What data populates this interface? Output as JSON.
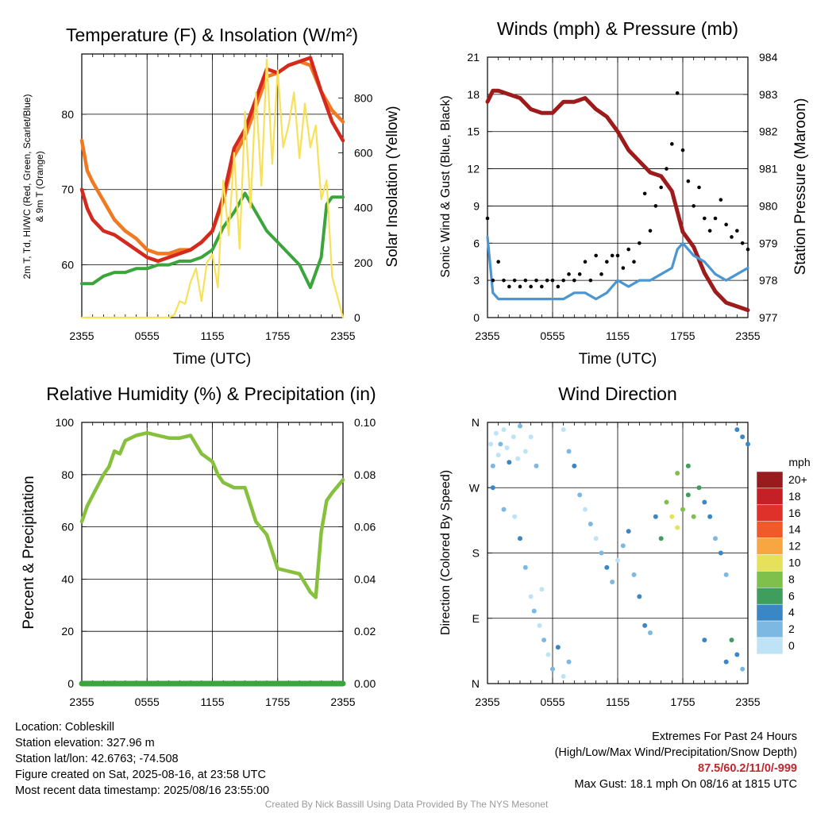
{
  "panels": {
    "temp": {
      "title": "Temperature (F) & Insolation (W/m²)",
      "ylabel_left_line1": "2m T, Td, HI/WC (Red, Green, Scarlet/Blue)",
      "ylabel_left_line2": "& 9m T (Orange)",
      "ylabel_right": "Solar Insolation (Yellow)",
      "xlabel": "Time (UTC)"
    },
    "wind": {
      "title": "Winds (mph) & Pressure (mb)",
      "ylabel_left": "Sonic Wind & Gust (Blue, Black)",
      "ylabel_right": "Station Pressure (Maroon)",
      "xlabel": "Time (UTC)"
    },
    "rh": {
      "title": "Relative Humidity (%) & Precipitation (in)",
      "ylabel_left": "Percent & Precipitation"
    },
    "dir": {
      "title": "Wind Direction",
      "ylabel_left": "Direction (Colored By Speed)",
      "legend_unit": "mph",
      "legend_labels": [
        "20+",
        "18",
        "16",
        "14",
        "12",
        "10",
        "8",
        "6",
        "4",
        "2",
        "0"
      ],
      "legend_colors": [
        "#9a1b1e",
        "#c42026",
        "#e0302a",
        "#f05a28",
        "#f8a642",
        "#e6e05a",
        "#7fc04c",
        "#3f9e5c",
        "#3b86c4",
        "#7db8e3",
        "#bfe3f6"
      ]
    }
  },
  "x_ticks": [
    "2355",
    "0555",
    "1155",
    "1755",
    "2355"
  ],
  "info": {
    "location": "Location: Cobleskill",
    "elevation": "Station elevation: 327.96 m",
    "latlon": "Station lat/lon: 42.6763; -74.508",
    "created": "Figure created on Sat, 2025-08-16, at 23:58 UTC",
    "recent": "Most recent data timestamp: 2025/08/16 23:55:00"
  },
  "extremes": {
    "title": "Extremes For Past 24 Hours",
    "subtitle": "(High/Low/Max Wind/Precipitation/Snow Depth)",
    "values": "87.5/60.2/11/0/-999",
    "max_gust": "Max Gust: 18.1 mph On 08/16 at 1815 UTC"
  },
  "credit": "Created By Nick Bassill Using Data Provided By The NYS Mesonet",
  "colors": {
    "temperature": "#d42a1e",
    "dewpoint": "#3aa53a",
    "temp_9m": "#f07a22",
    "insolation": "#f7e05a",
    "wind": "#4a96d2",
    "gust": "#000000",
    "pressure": "#9e1b1b",
    "rh": "#86c03c",
    "precip": "#3aa53a"
  },
  "chart_data": [
    {
      "type": "line",
      "id": "temp",
      "x_unit": "hours since 2355 UTC",
      "xlim": [
        0,
        24
      ],
      "ylim": [
        53,
        88
      ],
      "y2lim": [
        0,
        960
      ],
      "yticks": [
        60,
        70,
        80
      ],
      "y2ticks": [
        0,
        200,
        400,
        600,
        800
      ],
      "series": [
        {
          "key": "temp_9m",
          "x": [
            0,
            0.5,
            1,
            2,
            3,
            4,
            5,
            6,
            7,
            8,
            9,
            10,
            11,
            12,
            13,
            14,
            15,
            16,
            17,
            18,
            19,
            20,
            21,
            22,
            23,
            24
          ],
          "y": [
            76.5,
            72.5,
            71,
            68.5,
            66,
            64.5,
            63.5,
            62,
            61.5,
            61.5,
            62,
            62,
            63,
            64.5,
            68.5,
            74.5,
            77,
            81,
            85,
            85.5,
            86.5,
            87,
            86.5,
            83,
            80.5,
            79
          ]
        },
        {
          "key": "temperature",
          "x": [
            0,
            0.5,
            1,
            2,
            3,
            4,
            5,
            6,
            7,
            8,
            9,
            10,
            11,
            12,
            13,
            14,
            15,
            16,
            17,
            18,
            19,
            20,
            21,
            22,
            23,
            24
          ],
          "y": [
            70,
            67.5,
            66,
            64.5,
            64,
            63,
            62,
            61,
            60.5,
            61,
            61.5,
            62,
            63,
            64.5,
            69,
            75.5,
            78,
            82,
            86,
            85.5,
            86.5,
            87,
            87.5,
            83,
            79,
            76.5
          ]
        },
        {
          "key": "dewpoint",
          "x": [
            0,
            1,
            2,
            3,
            4,
            5,
            6,
            7,
            8,
            9,
            10,
            11,
            12,
            13,
            14,
            15,
            16,
            17,
            18,
            19,
            20,
            21,
            22,
            22.5,
            23,
            24
          ],
          "y": [
            57.5,
            57.5,
            58.5,
            59,
            59,
            59.5,
            59.5,
            60,
            60,
            60.5,
            60.5,
            61,
            62,
            65,
            67,
            69.5,
            67,
            64.5,
            63,
            61.5,
            60,
            57,
            61,
            68,
            69,
            69
          ]
        },
        {
          "key": "insolation",
          "x": [
            0,
            7,
            8,
            8.5,
            9,
            9.5,
            10,
            10.5,
            11,
            11.5,
            12,
            12.5,
            13,
            13.5,
            14,
            14.5,
            15,
            15.5,
            16,
            16.5,
            17,
            17.5,
            18,
            18.5,
            19,
            19.5,
            20,
            20.5,
            21,
            21.5,
            22,
            22.5,
            23,
            24
          ],
          "y": [
            0,
            0,
            0,
            10,
            60,
            50,
            130,
            180,
            60,
            200,
            230,
            110,
            500,
            300,
            600,
            250,
            750,
            400,
            820,
            480,
            940,
            560,
            900,
            620,
            700,
            820,
            580,
            780,
            620,
            700,
            430,
            500,
            150,
            0
          ],
          "axis": "right"
        }
      ]
    },
    {
      "type": "line",
      "id": "wind",
      "x_unit": "hours since 2355 UTC",
      "xlim": [
        0,
        24
      ],
      "ylim": [
        0,
        21
      ],
      "y2lim": [
        977,
        984
      ],
      "yticks": [
        0,
        3,
        6,
        9,
        12,
        15,
        18,
        21
      ],
      "y2ticks": [
        977,
        978,
        979,
        980,
        981,
        982,
        983,
        984
      ],
      "series": [
        {
          "key": "pressure",
          "axis": "right",
          "x": [
            0,
            0.5,
            1,
            2,
            3,
            4,
            5,
            6,
            7,
            8,
            9,
            10,
            11,
            12,
            13,
            14,
            15,
            16,
            17,
            18,
            19,
            20,
            21,
            22,
            23,
            24
          ],
          "y": [
            982.8,
            983.1,
            983.1,
            983.0,
            982.9,
            982.6,
            982.5,
            982.5,
            982.8,
            982.8,
            982.9,
            982.6,
            982.4,
            982.0,
            981.5,
            981.2,
            980.9,
            980.8,
            980.4,
            979.3,
            978.9,
            978.2,
            977.7,
            977.4,
            977.3,
            977.2
          ]
        },
        {
          "key": "wind",
          "x": [
            0,
            0.5,
            1,
            2,
            3,
            4,
            5,
            6,
            7,
            8,
            9,
            10,
            11,
            12,
            13,
            14,
            15,
            16,
            17,
            17.5,
            18,
            19,
            20,
            21,
            22,
            23,
            24
          ],
          "y": [
            6.5,
            2,
            1.5,
            1.5,
            1.5,
            1.5,
            1.5,
            1.5,
            1.5,
            2,
            2,
            1.5,
            2,
            3,
            2.5,
            3,
            3,
            3.5,
            4,
            5.5,
            6,
            5,
            4.5,
            3.5,
            3,
            3.5,
            4
          ]
        },
        {
          "key": "gust",
          "points": [
            [
              0,
              8
            ],
            [
              0.5,
              3
            ],
            [
              1,
              4.5
            ],
            [
              1.5,
              3
            ],
            [
              2,
              2.5
            ],
            [
              2.5,
              3
            ],
            [
              3,
              2.5
            ],
            [
              3.5,
              3
            ],
            [
              4,
              2.5
            ],
            [
              4.5,
              3
            ],
            [
              5,
              2.5
            ],
            [
              5.5,
              3
            ],
            [
              6,
              3
            ],
            [
              6.5,
              2.5
            ],
            [
              7,
              3
            ],
            [
              7.5,
              3.5
            ],
            [
              8,
              3
            ],
            [
              8.5,
              3.5
            ],
            [
              9,
              4.5
            ],
            [
              9.5,
              3
            ],
            [
              10,
              5
            ],
            [
              10.5,
              3.5
            ],
            [
              11,
              4.5
            ],
            [
              11.5,
              5
            ],
            [
              12,
              5
            ],
            [
              12.5,
              4
            ],
            [
              13,
              5.5
            ],
            [
              13.5,
              4.5
            ],
            [
              14,
              6
            ],
            [
              14.5,
              10
            ],
            [
              15,
              7
            ],
            [
              15.5,
              9
            ],
            [
              16,
              10.5
            ],
            [
              16.5,
              12
            ],
            [
              17,
              14
            ],
            [
              17.5,
              18.1
            ],
            [
              18,
              13.5
            ],
            [
              18.5,
              11
            ],
            [
              19,
              9
            ],
            [
              19.5,
              10.5
            ],
            [
              20,
              8
            ],
            [
              20.5,
              7
            ],
            [
              21,
              8
            ],
            [
              21.5,
              9.5
            ],
            [
              22,
              7.5
            ],
            [
              22.5,
              6.5
            ],
            [
              23,
              7
            ],
            [
              23.5,
              6
            ],
            [
              24,
              5.5
            ]
          ]
        }
      ]
    },
    {
      "type": "line",
      "id": "rh",
      "x_unit": "hours since 2355 UTC",
      "xlim": [
        0,
        24
      ],
      "ylim": [
        0,
        100
      ],
      "y2lim": [
        0,
        0.1
      ],
      "yticks": [
        0,
        20,
        40,
        60,
        80,
        100
      ],
      "y2ticks": [
        0.0,
        0.02,
        0.04,
        0.06,
        0.08,
        0.1
      ],
      "y2ticklabels": [
        "0.00",
        "0.02",
        "0.04",
        "0.06",
        "0.08",
        "0.10"
      ],
      "series": [
        {
          "key": "rh",
          "x": [
            0,
            0.5,
            1,
            1.5,
            2,
            2.5,
            3,
            3.5,
            4,
            5,
            6,
            7,
            8,
            9,
            10,
            11,
            12,
            12.5,
            13,
            14,
            15,
            16,
            17,
            18,
            19,
            20,
            21,
            21.5,
            22,
            22.5,
            23,
            24
          ],
          "y": [
            62,
            68,
            72,
            76,
            80,
            83,
            89,
            88,
            93,
            95,
            96,
            95,
            94,
            94,
            95,
            88,
            85,
            80,
            77,
            75,
            75,
            62,
            57,
            44,
            43,
            42,
            35,
            33,
            58,
            70,
            73,
            78
          ]
        },
        {
          "key": "precip",
          "axis": "right",
          "x": [
            0,
            24
          ],
          "y": [
            0,
            0
          ]
        }
      ]
    },
    {
      "type": "scatter",
      "id": "dir",
      "x_unit": "hours since 2355 UTC",
      "xlim": [
        0,
        24
      ],
      "ylim": [
        0,
        360
      ],
      "yticks": [
        0,
        90,
        180,
        270,
        360
      ],
      "yticklabels": [
        "N",
        "E",
        "S",
        "W",
        "N"
      ],
      "points": [
        [
          0.3,
          330,
          0
        ],
        [
          0.5,
          300,
          1
        ],
        [
          0.8,
          345,
          0
        ],
        [
          1.0,
          315,
          0
        ],
        [
          1.2,
          330,
          1
        ],
        [
          1.5,
          350,
          0
        ],
        [
          1.8,
          325,
          0
        ],
        [
          2.0,
          305,
          2
        ],
        [
          2.4,
          340,
          0
        ],
        [
          2.8,
          310,
          0
        ],
        [
          3.0,
          355,
          1
        ],
        [
          3.5,
          320,
          0
        ],
        [
          4.0,
          340,
          0
        ],
        [
          4.5,
          300,
          1
        ],
        [
          0.5,
          270,
          2
        ],
        [
          1.5,
          240,
          1
        ],
        [
          2.5,
          230,
          0
        ],
        [
          3.0,
          200,
          2
        ],
        [
          3.5,
          160,
          1
        ],
        [
          4.0,
          120,
          0
        ],
        [
          4.3,
          100,
          1
        ],
        [
          4.8,
          80,
          0
        ],
        [
          5.2,
          60,
          1
        ],
        [
          5.6,
          40,
          0
        ],
        [
          6.0,
          20,
          1
        ],
        [
          5.0,
          130,
          0
        ],
        [
          6.5,
          50,
          2
        ],
        [
          7.0,
          10,
          0
        ],
        [
          7.5,
          30,
          1
        ],
        [
          7.0,
          350,
          0
        ],
        [
          7.5,
          320,
          1
        ],
        [
          8.0,
          300,
          2
        ],
        [
          8.5,
          260,
          1
        ],
        [
          9.0,
          240,
          0
        ],
        [
          9.5,
          220,
          1
        ],
        [
          10.0,
          200,
          0
        ],
        [
          10.5,
          180,
          1
        ],
        [
          11.0,
          160,
          2
        ],
        [
          11.5,
          140,
          1
        ],
        [
          12.0,
          170,
          0
        ],
        [
          12.5,
          190,
          1
        ],
        [
          13.0,
          210,
          2
        ],
        [
          13.5,
          150,
          1
        ],
        [
          14.0,
          120,
          2
        ],
        [
          14.5,
          80,
          2
        ],
        [
          15.0,
          70,
          1
        ],
        [
          15.5,
          230,
          2
        ],
        [
          16.0,
          200,
          3
        ],
        [
          16.5,
          250,
          4
        ],
        [
          17.0,
          230,
          5
        ],
        [
          17.5,
          215,
          5
        ],
        [
          18.0,
          240,
          4
        ],
        [
          18.5,
          260,
          3
        ],
        [
          19.0,
          230,
          4
        ],
        [
          19.5,
          270,
          3
        ],
        [
          17.5,
          290,
          4
        ],
        [
          18.5,
          300,
          3
        ],
        [
          20.0,
          250,
          2
        ],
        [
          20.5,
          230,
          2
        ],
        [
          21.0,
          200,
          1
        ],
        [
          21.5,
          180,
          2
        ],
        [
          22.0,
          150,
          1
        ],
        [
          22.5,
          60,
          3
        ],
        [
          23.0,
          40,
          2
        ],
        [
          23.5,
          20,
          1
        ],
        [
          23.0,
          350,
          2
        ],
        [
          23.5,
          340,
          2
        ],
        [
          24.0,
          330,
          2
        ],
        [
          20.0,
          60,
          2
        ],
        [
          22.0,
          30,
          2
        ]
      ]
    }
  ]
}
